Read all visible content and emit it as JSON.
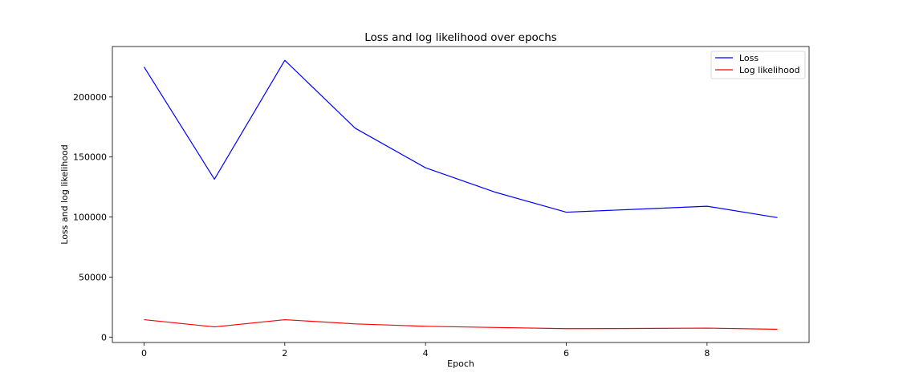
{
  "chart_data": {
    "type": "line",
    "title": "Loss and log likelihood over epochs",
    "xlabel": "Epoch",
    "ylabel": "Loss and log likelihood",
    "x": [
      0,
      1,
      2,
      3,
      4,
      5,
      6,
      7,
      8,
      9
    ],
    "xlim": [
      -0.45,
      9.45
    ],
    "ylim": [
      -4500,
      242000
    ],
    "xticks": [
      0,
      2,
      4,
      6,
      8
    ],
    "yticks": [
      0,
      50000,
      100000,
      150000,
      200000
    ],
    "grid": false,
    "legend_position": "top-right",
    "series": [
      {
        "name": "Loss",
        "color": "#0000ff",
        "values": [
          225000,
          131500,
          230500,
          174000,
          141000,
          120500,
          104000,
          106500,
          109000,
          99500
        ]
      },
      {
        "name": "Log likelihood",
        "color": "#ff0000",
        "values": [
          14500,
          8500,
          14500,
          11000,
          9000,
          8000,
          7000,
          7200,
          7500,
          6500
        ]
      }
    ]
  }
}
